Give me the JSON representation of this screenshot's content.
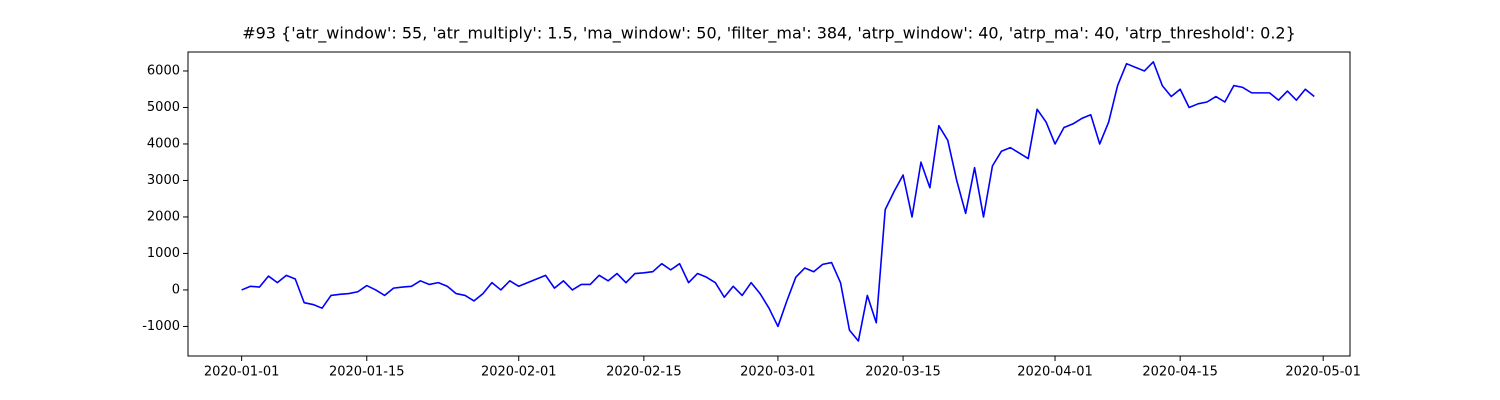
{
  "chart_data": {
    "type": "line",
    "title": "#93 {'atr_window': 55, 'atr_multiply': 1.5, 'ma_window': 50, 'filter_ma': 384, 'atrp_window': 40, 'atrp_ma': 40, 'atrp_threshold': 0.2}",
    "x": [
      "2020-01-01",
      "2020-01-02",
      "2020-01-03",
      "2020-01-04",
      "2020-01-05",
      "2020-01-06",
      "2020-01-07",
      "2020-01-08",
      "2020-01-09",
      "2020-01-10",
      "2020-01-11",
      "2020-01-12",
      "2020-01-13",
      "2020-01-14",
      "2020-01-15",
      "2020-01-16",
      "2020-01-17",
      "2020-01-18",
      "2020-01-19",
      "2020-01-20",
      "2020-01-21",
      "2020-01-22",
      "2020-01-23",
      "2020-01-24",
      "2020-01-25",
      "2020-01-26",
      "2020-01-27",
      "2020-01-28",
      "2020-01-29",
      "2020-01-30",
      "2020-01-31",
      "2020-02-01",
      "2020-02-02",
      "2020-02-03",
      "2020-02-04",
      "2020-02-05",
      "2020-02-06",
      "2020-02-07",
      "2020-02-08",
      "2020-02-09",
      "2020-02-10",
      "2020-02-11",
      "2020-02-12",
      "2020-02-13",
      "2020-02-14",
      "2020-02-15",
      "2020-02-16",
      "2020-02-17",
      "2020-02-18",
      "2020-02-19",
      "2020-02-20",
      "2020-02-21",
      "2020-02-22",
      "2020-02-23",
      "2020-02-24",
      "2020-02-25",
      "2020-02-26",
      "2020-02-27",
      "2020-02-28",
      "2020-02-29",
      "2020-03-01",
      "2020-03-02",
      "2020-03-03",
      "2020-03-04",
      "2020-03-05",
      "2020-03-06",
      "2020-03-07",
      "2020-03-08",
      "2020-03-09",
      "2020-03-10",
      "2020-03-11",
      "2020-03-12",
      "2020-03-13",
      "2020-03-14",
      "2020-03-15",
      "2020-03-16",
      "2020-03-17",
      "2020-03-18",
      "2020-03-19",
      "2020-03-20",
      "2020-03-21",
      "2020-03-22",
      "2020-03-23",
      "2020-03-24",
      "2020-03-25",
      "2020-03-26",
      "2020-03-27",
      "2020-03-28",
      "2020-03-29",
      "2020-03-30",
      "2020-03-31",
      "2020-04-01",
      "2020-04-02",
      "2020-04-03",
      "2020-04-04",
      "2020-04-05",
      "2020-04-06",
      "2020-04-07",
      "2020-04-08",
      "2020-04-09",
      "2020-04-10",
      "2020-04-11",
      "2020-04-12",
      "2020-04-13",
      "2020-04-14",
      "2020-04-15",
      "2020-04-16",
      "2020-04-17",
      "2020-04-18",
      "2020-04-19",
      "2020-04-20",
      "2020-04-21",
      "2020-04-22",
      "2020-04-23",
      "2020-04-24",
      "2020-04-25",
      "2020-04-26",
      "2020-04-27",
      "2020-04-28",
      "2020-04-29",
      "2020-04-30"
    ],
    "series": [
      {
        "color": "#0000ff",
        "values": [
          0,
          100,
          80,
          380,
          200,
          400,
          300,
          -350,
          -400,
          -500,
          -150,
          -120,
          -100,
          -50,
          120,
          0,
          -150,
          50,
          80,
          100,
          250,
          150,
          200,
          100,
          -100,
          -150,
          -300,
          -100,
          200,
          0,
          250,
          100,
          200,
          300,
          400,
          50,
          250,
          0,
          150,
          150,
          400,
          250,
          450,
          200,
          450,
          470,
          500,
          720,
          550,
          720,
          200,
          450,
          350,
          200,
          -200,
          100,
          -150,
          200,
          -100,
          -500,
          -1000,
          -300,
          350,
          600,
          500,
          700,
          750,
          200,
          -1100,
          -1400,
          -150,
          -900,
          2200,
          2700,
          3150,
          2000,
          3500,
          2800,
          4500,
          4100,
          3000,
          2100,
          3350,
          2000,
          3400,
          3800,
          3900,
          3750,
          3600,
          4950,
          4600,
          4000,
          4450,
          4550,
          4700,
          4800,
          4000,
          4600,
          5600,
          6200,
          6100,
          6000,
          6250,
          5600,
          5300,
          5500,
          5000,
          5100,
          5150,
          5300,
          5150,
          5600,
          5550,
          5400,
          5400,
          5400,
          5200,
          5450,
          5200,
          5500,
          5300
        ]
      }
    ],
    "xlim": [
      "2019-12-26",
      "2020-05-04"
    ],
    "xticks": [
      "2020-01-01",
      "2020-01-15",
      "2020-02-01",
      "2020-02-15",
      "2020-03-01",
      "2020-03-15",
      "2020-04-01",
      "2020-04-15",
      "2020-05-01"
    ],
    "ylim": [
      -1810,
      6520
    ],
    "yticks": [
      -1000,
      0,
      1000,
      2000,
      3000,
      4000,
      5000,
      6000
    ]
  }
}
